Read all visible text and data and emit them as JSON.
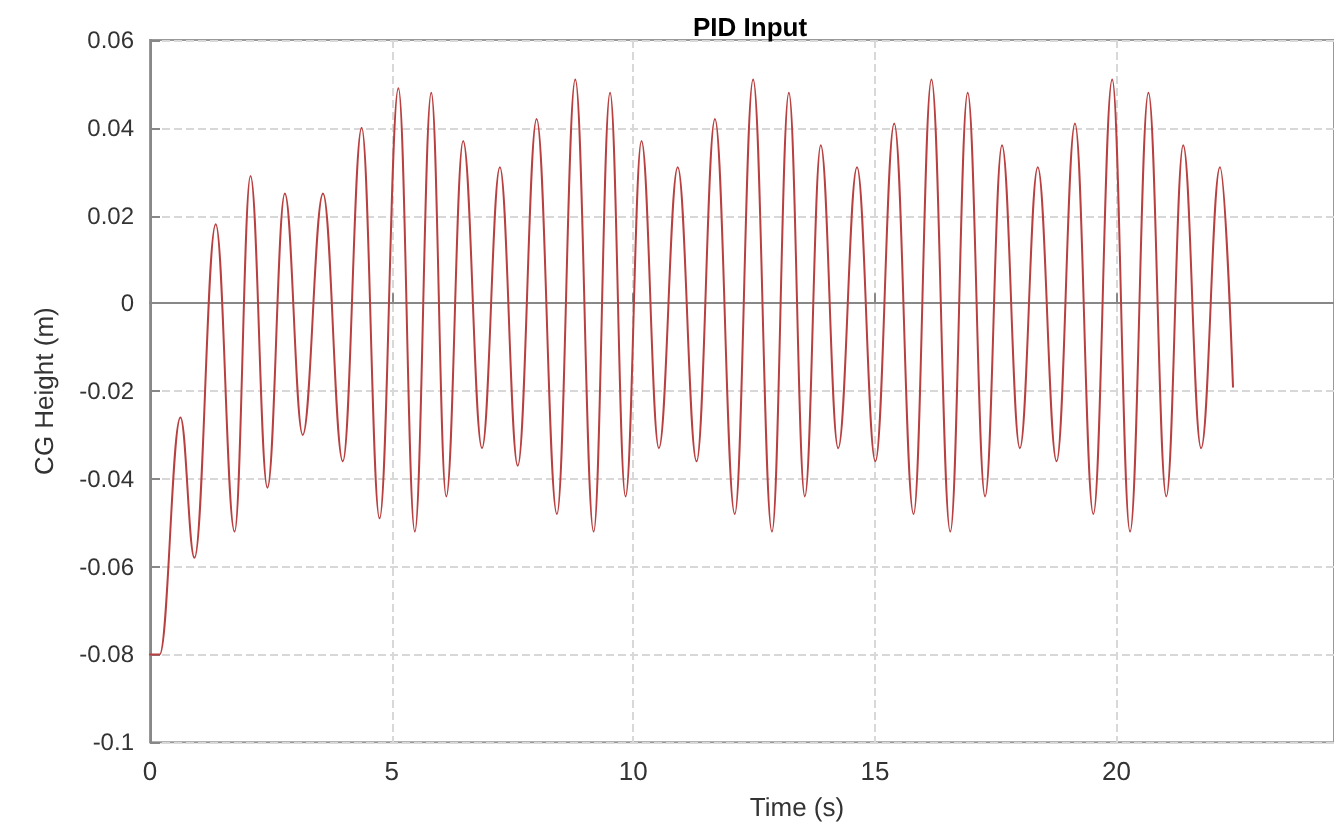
{
  "chart_data": {
    "type": "line",
    "title": "PID Input",
    "xlabel": "Time (s)",
    "ylabel": "CG Height (m)",
    "x": [
      0,
      0.2,
      0.63,
      0.92,
      1.36,
      1.75,
      2.08,
      2.43,
      2.79,
      3.16,
      3.58,
      3.99,
      4.38,
      4.75,
      5.14,
      5.48,
      5.82,
      6.13,
      6.48,
      6.87,
      7.24,
      7.61,
      8.0,
      8.42,
      8.8,
      9.18,
      9.52,
      9.84,
      10.17,
      10.53,
      10.92,
      11.31,
      11.69,
      12.1,
      12.48,
      12.87,
      13.22,
      13.55,
      13.88,
      14.24,
      14.63,
      15.01,
      15.4,
      15.8,
      16.17,
      16.56,
      16.92,
      17.28,
      17.63,
      18.0,
      18.37,
      18.76,
      19.14,
      19.52,
      19.91,
      20.28,
      20.66,
      21.03,
      21.38,
      21.75,
      22.14,
      22.41
    ],
    "series": [
      {
        "color": "#b84040",
        "values": [
          -0.08,
          -0.08,
          -0.026,
          -0.058,
          0.018,
          -0.052,
          0.029,
          -0.042,
          0.025,
          -0.03,
          0.025,
          -0.036,
          0.04,
          -0.049,
          0.049,
          -0.052,
          0.048,
          -0.044,
          0.037,
          -0.033,
          0.031,
          -0.037,
          0.042,
          -0.048,
          0.051,
          -0.052,
          0.048,
          -0.044,
          0.037,
          -0.033,
          0.031,
          -0.036,
          0.042,
          -0.048,
          0.051,
          -0.052,
          0.048,
          -0.044,
          0.036,
          -0.033,
          0.031,
          -0.036,
          0.041,
          -0.048,
          0.051,
          -0.052,
          0.048,
          -0.044,
          0.036,
          -0.033,
          0.031,
          -0.036,
          0.041,
          -0.048,
          0.051,
          -0.052,
          0.048,
          -0.044,
          0.036,
          -0.033,
          0.031,
          -0.019
        ]
      }
    ],
    "xlim": [
      0,
      24.5
    ],
    "xticks": [
      0,
      5,
      10,
      15,
      20
    ],
    "ylim": [
      -0.1,
      0.06
    ],
    "yticks": [
      -0.1,
      -0.08,
      -0.06,
      -0.04,
      -0.02,
      0,
      0.02,
      0.04,
      0.06
    ],
    "grid": true,
    "marker": "none",
    "line_style": "solid"
  }
}
